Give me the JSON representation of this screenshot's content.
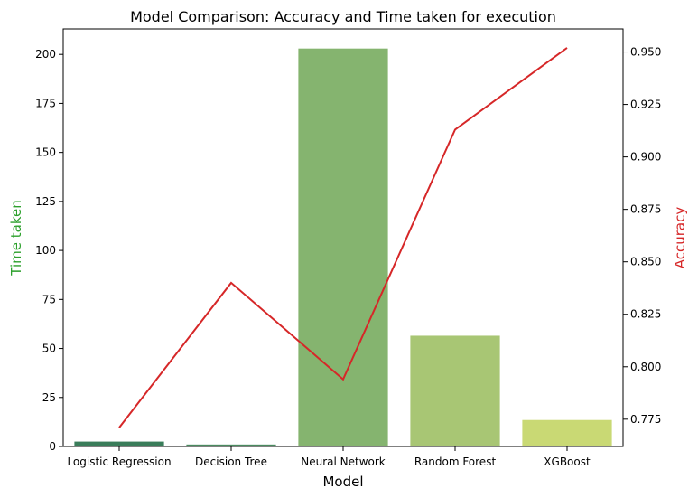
{
  "chart_data": {
    "type": "bar",
    "title": "Model Comparison: Accuracy and Time taken for execution",
    "xlabel": "Model",
    "categories": [
      "Logistic Regression",
      "Decision Tree",
      "Neural Network",
      "Random Forest",
      "XGBoost"
    ],
    "bar_series": {
      "axis_label": "Time taken",
      "axis_label_color": "#2ca02c",
      "values": [
        2.5,
        1.0,
        203.0,
        56.5,
        13.5
      ],
      "colors": [
        "#3a7d5a",
        "#4a8a5f",
        "#85b46f",
        "#a8c674",
        "#c9d974"
      ],
      "ylim": [
        0,
        213
      ],
      "ticks": [
        0,
        25,
        50,
        75,
        100,
        125,
        150,
        175,
        200
      ]
    },
    "line_series": {
      "axis_label": "Accuracy",
      "axis_label_color": "#d62728",
      "color": "#d62728",
      "values": [
        0.771,
        0.84,
        0.794,
        0.913,
        0.952
      ],
      "ylim": [
        0.762,
        0.961
      ],
      "ticks": [
        0.775,
        0.8,
        0.825,
        0.85,
        0.875,
        0.9,
        0.925,
        0.95
      ],
      "tick_labels": [
        "0.775",
        "0.800",
        "0.825",
        "0.850",
        "0.875",
        "0.900",
        "0.925",
        "0.950"
      ]
    },
    "grid": false,
    "legend": "none"
  }
}
